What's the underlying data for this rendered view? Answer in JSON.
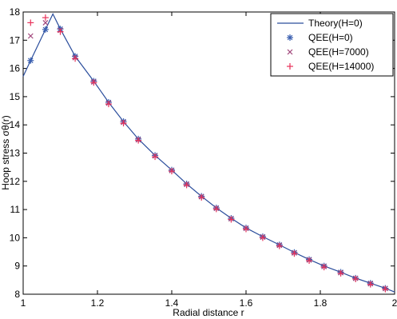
{
  "chart_data": {
    "type": "line",
    "xlabel": "Radial distance r",
    "ylabel": "Hoop stress σθ(r)",
    "xlim": [
      1,
      2
    ],
    "ylim": [
      8,
      18
    ],
    "xticks": [
      "1",
      "1.2",
      "1.4",
      "1.6",
      "1.8",
      "2"
    ],
    "yticks": [
      "8",
      "9",
      "10",
      "11",
      "12",
      "13",
      "14",
      "15",
      "16",
      "17",
      "18"
    ],
    "legend_position": "top-right",
    "series": [
      {
        "name": "Theory(H=0)",
        "style": "line",
        "color": "#2a4d9c",
        "x": [
          1.0,
          1.02,
          1.06,
          1.08,
          1.1,
          1.14,
          1.19,
          1.23,
          1.27,
          1.31,
          1.355,
          1.4,
          1.44,
          1.48,
          1.52,
          1.56,
          1.6,
          1.645,
          1.69,
          1.73,
          1.77,
          1.81,
          1.855,
          1.895,
          1.935,
          1.975,
          2.0
        ],
        "y": [
          15.72,
          16.28,
          17.38,
          17.93,
          17.4,
          16.43,
          15.55,
          14.8,
          14.12,
          13.5,
          12.92,
          12.4,
          11.91,
          11.47,
          11.06,
          10.69,
          10.35,
          10.04,
          9.75,
          9.48,
          9.23,
          9.0,
          8.78,
          8.57,
          8.39,
          8.21,
          8.08
        ]
      },
      {
        "name": "QEE(H=0)",
        "style": "asterisk",
        "color": "#3a5fb0",
        "x": [
          1.02,
          1.06,
          1.1,
          1.14,
          1.19,
          1.23,
          1.27,
          1.31,
          1.355,
          1.4,
          1.44,
          1.48,
          1.52,
          1.56,
          1.6,
          1.645,
          1.69,
          1.73,
          1.77,
          1.81,
          1.855,
          1.895,
          1.935,
          1.975
        ],
        "y": [
          16.28,
          17.38,
          17.4,
          16.43,
          15.55,
          14.8,
          14.12,
          13.5,
          12.92,
          12.4,
          11.91,
          11.47,
          11.06,
          10.69,
          10.35,
          10.04,
          9.75,
          9.48,
          9.23,
          9.0,
          8.78,
          8.57,
          8.39,
          8.21
        ]
      },
      {
        "name": "QEE(H=7000)",
        "style": "x",
        "color": "#a0447a",
        "x": [
          1.02,
          1.06,
          1.1,
          1.14,
          1.19,
          1.23,
          1.27,
          1.31,
          1.355,
          1.4,
          1.44,
          1.48,
          1.52,
          1.56,
          1.6,
          1.645,
          1.69,
          1.73,
          1.77,
          1.81,
          1.855,
          1.895,
          1.935,
          1.975
        ],
        "y": [
          17.15,
          17.62,
          17.35,
          16.38,
          15.52,
          14.77,
          14.09,
          13.47,
          12.9,
          12.38,
          11.89,
          11.45,
          11.04,
          10.67,
          10.33,
          10.02,
          9.73,
          9.46,
          9.21,
          8.98,
          8.76,
          8.56,
          8.37,
          8.2
        ]
      },
      {
        "name": "QEE(H=14000)",
        "style": "plus",
        "color": "#e8315a",
        "x": [
          1.02,
          1.06,
          1.1,
          1.14,
          1.19,
          1.23,
          1.27,
          1.31,
          1.355,
          1.4,
          1.44,
          1.48,
          1.52,
          1.56,
          1.6,
          1.645,
          1.69,
          1.73,
          1.77,
          1.81,
          1.855,
          1.895,
          1.935,
          1.975
        ],
        "y": [
          17.62,
          17.8,
          17.3,
          16.35,
          15.5,
          14.74,
          14.06,
          13.45,
          12.87,
          12.36,
          11.87,
          11.43,
          11.02,
          10.65,
          10.31,
          10.0,
          9.71,
          9.44,
          9.19,
          8.96,
          8.74,
          8.54,
          8.35,
          8.18
        ]
      }
    ]
  }
}
